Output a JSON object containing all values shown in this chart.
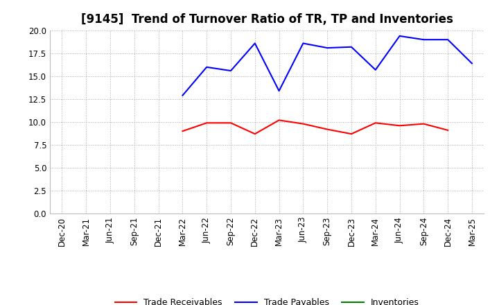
{
  "title": "[9145]  Trend of Turnover Ratio of TR, TP and Inventories",
  "x_labels": [
    "Dec-20",
    "Mar-21",
    "Jun-21",
    "Sep-21",
    "Dec-21",
    "Mar-22",
    "Jun-22",
    "Sep-22",
    "Dec-22",
    "Mar-23",
    "Jun-23",
    "Sep-23",
    "Dec-23",
    "Mar-24",
    "Jun-24",
    "Sep-24",
    "Dec-24",
    "Mar-25"
  ],
  "trade_receivables": [
    null,
    null,
    null,
    null,
    null,
    9.0,
    9.9,
    9.9,
    8.7,
    10.2,
    9.8,
    9.2,
    8.7,
    9.9,
    9.6,
    9.8,
    9.1,
    null
  ],
  "trade_payables": [
    null,
    null,
    null,
    null,
    null,
    12.9,
    16.0,
    15.6,
    18.6,
    13.4,
    18.6,
    18.1,
    18.2,
    15.7,
    19.4,
    19.0,
    19.0,
    16.4
  ],
  "inventories": [
    null,
    null,
    null,
    null,
    null,
    null,
    null,
    null,
    null,
    null,
    null,
    null,
    null,
    null,
    null,
    null,
    null,
    null
  ],
  "ylim": [
    0.0,
    20.0
  ],
  "yticks": [
    0.0,
    2.5,
    5.0,
    7.5,
    10.0,
    12.5,
    15.0,
    17.5,
    20.0
  ],
  "tr_color": "#ff0000",
  "tp_color": "#0000ff",
  "inv_color": "#008000",
  "bg_color": "#ffffff",
  "grid_color": "#aaaaaa",
  "title_fontsize": 12,
  "tick_fontsize": 8.5,
  "legend_fontsize": 9,
  "legend_labels": [
    "Trade Receivables",
    "Trade Payables",
    "Inventories"
  ]
}
